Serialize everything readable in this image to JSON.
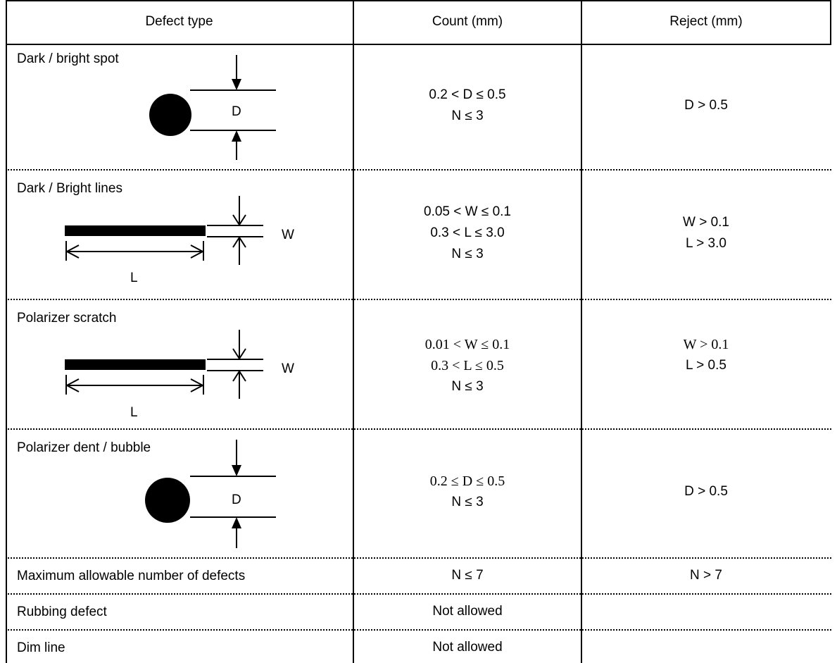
{
  "header": {
    "col_defect_type": "Defect type",
    "col_count": "Count (mm)",
    "col_reject": "Reject (mm)"
  },
  "rows": [
    {
      "name": "Dark / bright spot",
      "diagram_label": "D",
      "count": [
        "0.2  < D ≤ 0.5",
        "N ≤ 3"
      ],
      "reject": [
        "D > 0.5"
      ]
    },
    {
      "name": "Dark / Bright lines",
      "diagram_labels": [
        "W",
        "L"
      ],
      "count": [
        "0.05 < W ≤ 0.1",
        "0.3 < L ≤  3.0",
        "N ≤ 3"
      ],
      "reject": [
        "W > 0.1",
        "L > 3.0"
      ]
    },
    {
      "name": "Polarizer scratch",
      "diagram_labels": [
        "W",
        "L"
      ],
      "count": [
        "0.01 < W ≤ 0.1",
        "0.3 < L ≤  0.5",
        "N ≤ 3"
      ],
      "reject": [
        "W > 0.1",
        "L > 0.5"
      ]
    },
    {
      "name": "Polarizer dent / bubble",
      "diagram_label": "D",
      "count": [
        "0.2 ≤ D ≤ 0.5",
        "N ≤ 3"
      ],
      "reject": [
        "D > 0.5"
      ]
    },
    {
      "name": "Maximum allowable number of defects",
      "count": [
        "N ≤ 7"
      ],
      "reject": [
        "N > 7"
      ]
    },
    {
      "name": "Rubbing defect",
      "count": [
        "Not allowed"
      ],
      "reject": []
    },
    {
      "name": "Dim line",
      "count": [
        "Not allowed"
      ],
      "reject": []
    }
  ]
}
